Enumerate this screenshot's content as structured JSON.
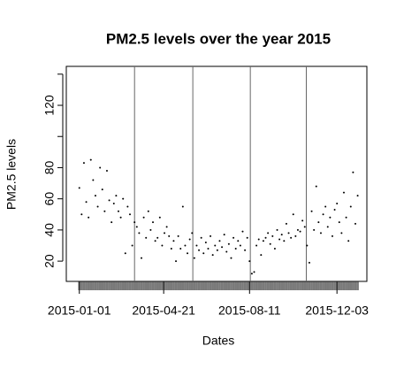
{
  "chart_data": {
    "type": "scatter",
    "title": "PM2.5 levels over the year 2015",
    "x_label": "Dates",
    "y_label": "PM2.5 levels",
    "x": [
      "2015-01-01",
      "2015-01-04",
      "2015-01-07",
      "2015-01-10",
      "2015-01-13",
      "2015-01-16",
      "2015-01-19",
      "2015-01-22",
      "2015-01-25",
      "2015-01-28",
      "2015-01-31",
      "2015-02-03",
      "2015-02-06",
      "2015-02-09",
      "2015-02-12",
      "2015-02-15",
      "2015-02-18",
      "2015-02-21",
      "2015-02-24",
      "2015-02-27",
      "2015-03-02",
      "2015-03-05",
      "2015-03-08",
      "2015-03-11",
      "2015-03-14",
      "2015-03-17",
      "2015-03-20",
      "2015-03-23",
      "2015-03-26",
      "2015-03-29",
      "2015-04-01",
      "2015-04-04",
      "2015-04-07",
      "2015-04-10",
      "2015-04-13",
      "2015-04-16",
      "2015-04-19",
      "2015-04-22",
      "2015-04-25",
      "2015-04-28",
      "2015-05-01",
      "2015-05-04",
      "2015-05-07",
      "2015-05-10",
      "2015-05-13",
      "2015-05-16",
      "2015-05-19",
      "2015-05-22",
      "2015-05-25",
      "2015-05-28",
      "2015-05-31",
      "2015-06-03",
      "2015-06-06",
      "2015-06-09",
      "2015-06-12",
      "2015-06-15",
      "2015-06-18",
      "2015-06-21",
      "2015-06-24",
      "2015-06-27",
      "2015-06-30",
      "2015-07-03",
      "2015-07-06",
      "2015-07-09",
      "2015-07-12",
      "2015-07-15",
      "2015-07-18",
      "2015-07-21",
      "2015-07-24",
      "2015-07-27",
      "2015-07-30",
      "2015-08-02",
      "2015-08-05",
      "2015-08-08",
      "2015-08-11",
      "2015-08-14",
      "2015-08-17",
      "2015-08-20",
      "2015-08-23",
      "2015-08-26",
      "2015-08-29",
      "2015-09-01",
      "2015-09-04",
      "2015-09-07",
      "2015-09-10",
      "2015-09-13",
      "2015-09-16",
      "2015-09-19",
      "2015-09-22",
      "2015-09-25",
      "2015-09-28",
      "2015-10-01",
      "2015-10-04",
      "2015-10-07",
      "2015-10-10",
      "2015-10-13",
      "2015-10-16",
      "2015-10-19",
      "2015-10-22",
      "2015-10-25",
      "2015-10-28",
      "2015-10-31",
      "2015-11-03",
      "2015-11-06",
      "2015-11-09",
      "2015-11-12",
      "2015-11-15",
      "2015-11-18",
      "2015-11-21",
      "2015-11-24",
      "2015-11-27",
      "2015-11-30",
      "2015-12-03",
      "2015-12-06",
      "2015-12-09",
      "2015-12-12",
      "2015-12-15",
      "2015-12-18",
      "2015-12-21",
      "2015-12-24",
      "2015-12-27",
      "2015-12-30"
    ],
    "values": [
      67,
      50,
      83,
      58,
      48,
      85,
      72,
      62,
      55,
      80,
      66,
      52,
      78,
      59,
      45,
      57,
      62,
      52,
      48,
      60,
      25,
      55,
      50,
      30,
      45,
      42,
      38,
      22,
      48,
      35,
      52,
      40,
      45,
      33,
      35,
      48,
      30,
      38,
      42,
      36,
      28,
      33,
      20,
      36,
      28,
      55,
      30,
      25,
      34,
      38,
      22,
      30,
      27,
      35,
      25,
      32,
      28,
      36,
      24,
      30,
      27,
      33,
      29,
      37,
      26,
      31,
      22,
      35,
      28,
      33,
      30,
      39,
      27,
      35,
      20,
      12,
      13,
      30,
      34,
      24,
      33,
      35,
      38,
      31,
      36,
      28,
      40,
      34,
      37,
      33,
      44,
      38,
      35,
      50,
      36,
      40,
      39,
      46,
      42,
      30,
      19,
      52,
      40,
      68,
      45,
      38,
      50,
      55,
      42,
      48,
      36,
      53,
      57,
      45,
      38,
      64,
      48,
      33,
      55,
      77,
      44,
      62
    ],
    "color": "#000000",
    "xlim": [
      "2014-12-15",
      "2016-01-11"
    ],
    "xticks": [
      "2015-01-01",
      "2015-04-21",
      "2015-08-11",
      "2015-12-03"
    ],
    "vlines": [
      "2015-03-14",
      "2015-05-29",
      "2015-08-12",
      "2015-10-24"
    ],
    "ylim": [
      7,
      145
    ],
    "yticks": [
      20,
      40,
      60,
      80,
      120
    ],
    "yminor_ticks": [
      100,
      140
    ],
    "rug": true
  }
}
